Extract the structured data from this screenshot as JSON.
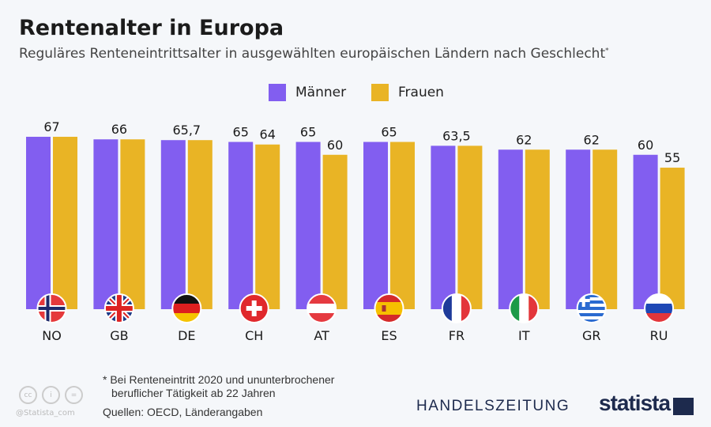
{
  "title": "Rentenalter in Europa",
  "subtitle": "Reguläres Renteneintrittsalter in ausgewählten europäischen Ländern nach Geschlecht",
  "subtitle_mark": "*",
  "chart_data": {
    "type": "bar",
    "categories": [
      "NO",
      "GB",
      "DE",
      "CH",
      "AT",
      "ES",
      "FR",
      "IT",
      "GR",
      "RU"
    ],
    "series": [
      {
        "name": "Männer",
        "color": "#825ef0",
        "values": [
          67,
          66,
          65.7,
          65,
          65,
          65,
          63.5,
          62,
          62,
          60
        ],
        "labels": [
          "67",
          "66",
          "65,7",
          "65",
          "65",
          "65",
          "63,5",
          "62",
          "62",
          "60"
        ]
      },
      {
        "name": "Frauen",
        "color": "#e9b425",
        "values": [
          67,
          66,
          65.7,
          64,
          60,
          65,
          63.5,
          62,
          62,
          55
        ],
        "labels": [
          "",
          "",
          "",
          "64",
          "60",
          "",
          "",
          "",
          "",
          "55"
        ]
      }
    ],
    "group_labels": [
      "67",
      "66",
      "65,7",
      "",
      "",
      "65",
      "63,5",
      "62",
      "62",
      ""
    ],
    "ylim": [
      0,
      67
    ],
    "grid": false,
    "legend": "top-center"
  },
  "footnote": [
    "* Bei Renteneintritt 2020 und ununterbrochener",
    "beruflicher Tätigkeit ab 22 Jahren"
  ],
  "source": "Quellen: OECD, Länderangaben",
  "handle": "@Statista_com",
  "brands": {
    "partner": "HANDELSZEITUNG",
    "statista": "statista"
  }
}
